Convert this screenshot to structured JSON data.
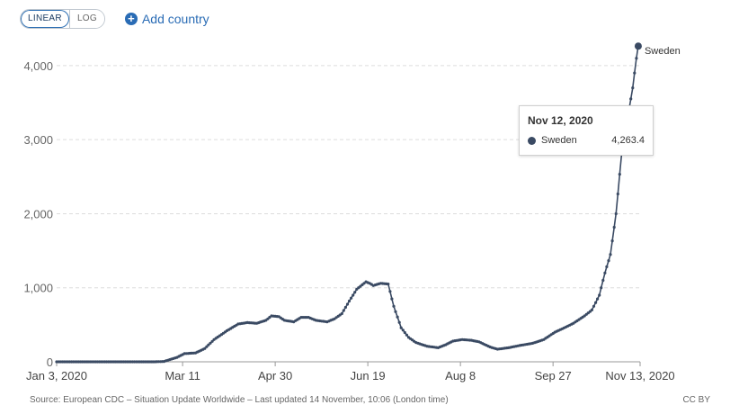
{
  "toolbar": {
    "linear_label": "LINEAR",
    "log_label": "LOG",
    "add_country_label": "Add country",
    "plus_icon": "plus-circle-icon"
  },
  "chart_data": {
    "type": "line",
    "x_range": [
      "2020-01-03",
      "2020-11-13"
    ],
    "ylim": [
      0,
      4400
    ],
    "grid": "horizontal dashed",
    "y_ticks": [
      "0",
      "1,000",
      "2,000",
      "3,000",
      "4,000"
    ],
    "y_tick_values": [
      0,
      1000,
      2000,
      3000,
      4000
    ],
    "x_ticks": [
      "Jan 3, 2020",
      "Mar 11",
      "Apr 30",
      "Jun 19",
      "Aug 8",
      "Sep 27",
      "Nov 13, 2020"
    ],
    "x_tick_dates": [
      "2020-01-03",
      "2020-03-11",
      "2020-04-30",
      "2020-06-19",
      "2020-08-08",
      "2020-09-27",
      "2020-11-13"
    ],
    "line_color": "#3a4a63",
    "series": [
      {
        "name": "Sweden",
        "points": [
          [
            "2020-01-03",
            0
          ],
          [
            "2020-02-25",
            0
          ],
          [
            "2020-03-01",
            5
          ],
          [
            "2020-03-08",
            60
          ],
          [
            "2020-03-12",
            110
          ],
          [
            "2020-03-18",
            120
          ],
          [
            "2020-03-23",
            180
          ],
          [
            "2020-03-28",
            300
          ],
          [
            "2020-04-04",
            420
          ],
          [
            "2020-04-10",
            510
          ],
          [
            "2020-04-15",
            530
          ],
          [
            "2020-04-20",
            520
          ],
          [
            "2020-04-25",
            560
          ],
          [
            "2020-04-28",
            620
          ],
          [
            "2020-05-02",
            610
          ],
          [
            "2020-05-05",
            560
          ],
          [
            "2020-05-10",
            540
          ],
          [
            "2020-05-14",
            600
          ],
          [
            "2020-05-18",
            600
          ],
          [
            "2020-05-22",
            560
          ],
          [
            "2020-05-28",
            540
          ],
          [
            "2020-06-01",
            580
          ],
          [
            "2020-06-05",
            650
          ],
          [
            "2020-06-09",
            820
          ],
          [
            "2020-06-13",
            980
          ],
          [
            "2020-06-16",
            1040
          ],
          [
            "2020-06-18",
            1080
          ],
          [
            "2020-06-20",
            1060
          ],
          [
            "2020-06-22",
            1030
          ],
          [
            "2020-06-26",
            1060
          ],
          [
            "2020-06-30",
            1050
          ],
          [
            "2020-07-03",
            750
          ],
          [
            "2020-07-07",
            460
          ],
          [
            "2020-07-11",
            330
          ],
          [
            "2020-07-15",
            260
          ],
          [
            "2020-07-21",
            210
          ],
          [
            "2020-07-27",
            190
          ],
          [
            "2020-07-31",
            230
          ],
          [
            "2020-08-04",
            280
          ],
          [
            "2020-08-09",
            300
          ],
          [
            "2020-08-14",
            290
          ],
          [
            "2020-08-18",
            270
          ],
          [
            "2020-08-24",
            200
          ],
          [
            "2020-08-28",
            170
          ],
          [
            "2020-09-03",
            190
          ],
          [
            "2020-09-09",
            220
          ],
          [
            "2020-09-16",
            250
          ],
          [
            "2020-09-22",
            300
          ],
          [
            "2020-09-28",
            400
          ],
          [
            "2020-10-04",
            470
          ],
          [
            "2020-10-08",
            520
          ],
          [
            "2020-10-14",
            620
          ],
          [
            "2020-10-18",
            700
          ],
          [
            "2020-10-22",
            900
          ],
          [
            "2020-10-25",
            1200
          ],
          [
            "2020-10-28",
            1450
          ],
          [
            "2020-10-31",
            2000
          ],
          [
            "2020-11-03",
            2800
          ],
          [
            "2020-11-05",
            3000
          ],
          [
            "2020-11-07",
            3400
          ],
          [
            "2020-11-09",
            3700
          ],
          [
            "2020-11-11",
            4100
          ],
          [
            "2020-11-12",
            4263.4
          ]
        ]
      }
    ],
    "end_label": "Sweden"
  },
  "tooltip": {
    "date": "Nov 12, 2020",
    "series_name": "Sweden",
    "value": "4,263.4"
  },
  "footer": {
    "source": "Source: European CDC – Situation Update Worldwide – Last updated 14 November, 10:06 (London time)",
    "license": "CC BY"
  }
}
